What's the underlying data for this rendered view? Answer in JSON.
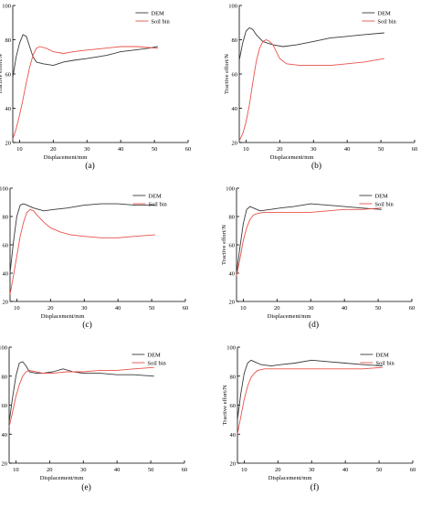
{
  "figure": {
    "colors": {
      "DEM": "#3a3a3a",
      "Soil bin": "#e8524a",
      "axis": "#000000"
    },
    "xlabel": "Displacement/mm",
    "ylabel": "Tractive effort/N",
    "xticks": [
      10,
      20,
      30,
      40,
      50,
      60
    ],
    "yticks": [
      20,
      40,
      60,
      80,
      100
    ],
    "legend": [
      "DEM",
      "Soil bin"
    ]
  },
  "chart_data": [
    {
      "label": "(a)",
      "type": "line",
      "xlim": [
        8,
        60
      ],
      "ylim": [
        20,
        100
      ],
      "xlabel": "Displacement/mm",
      "ylabel": "Tractive effort/N",
      "legend_position": "top-right",
      "series": [
        {
          "name": "DEM",
          "points": [
            [
              8,
              58
            ],
            [
              9,
              70
            ],
            [
              10,
              78
            ],
            [
              11,
              83
            ],
            [
              12,
              82
            ],
            [
              13,
              76
            ],
            [
              14,
              70
            ],
            [
              15,
              67
            ],
            [
              17,
              66
            ],
            [
              20,
              65
            ],
            [
              23,
              67
            ],
            [
              26,
              68
            ],
            [
              30,
              69
            ],
            [
              33,
              70
            ],
            [
              36,
              71
            ],
            [
              40,
              73
            ],
            [
              44,
              74
            ],
            [
              48,
              75
            ],
            [
              51,
              76
            ]
          ]
        },
        {
          "name": "Soil bin",
          "points": [
            [
              8,
              22
            ],
            [
              9,
              28
            ],
            [
              10,
              36
            ],
            [
              11,
              45
            ],
            [
              12,
              55
            ],
            [
              13,
              64
            ],
            [
              14,
              71
            ],
            [
              15,
              75
            ],
            [
              16,
              76
            ],
            [
              18,
              75
            ],
            [
              20,
              73
            ],
            [
              23,
              72
            ],
            [
              26,
              73
            ],
            [
              30,
              74
            ],
            [
              35,
              75
            ],
            [
              40,
              76
            ],
            [
              45,
              76
            ],
            [
              51,
              75
            ]
          ]
        }
      ]
    },
    {
      "label": "(b)",
      "type": "line",
      "xlim": [
        8,
        60
      ],
      "ylim": [
        20,
        100
      ],
      "xlabel": "Displacement/mm",
      "ylabel": "Tractive effort/N",
      "legend_position": "top-right",
      "series": [
        {
          "name": "DEM",
          "points": [
            [
              8,
              68
            ],
            [
              9,
              78
            ],
            [
              10,
              85
            ],
            [
              11,
              87
            ],
            [
              12,
              86
            ],
            [
              13,
              83
            ],
            [
              15,
              79
            ],
            [
              18,
              77
            ],
            [
              21,
              76
            ],
            [
              25,
              77
            ],
            [
              30,
              79
            ],
            [
              35,
              81
            ],
            [
              40,
              82
            ],
            [
              45,
              83
            ],
            [
              51,
              84
            ]
          ]
        },
        {
          "name": "Soil bin",
          "points": [
            [
              8,
              21
            ],
            [
              9,
              25
            ],
            [
              10,
              32
            ],
            [
              11,
              42
            ],
            [
              12,
              55
            ],
            [
              13,
              67
            ],
            [
              14,
              75
            ],
            [
              15,
              79
            ],
            [
              16,
              80
            ],
            [
              17,
              79
            ],
            [
              18,
              77
            ],
            [
              19,
              73
            ],
            [
              20,
              69
            ],
            [
              22,
              66
            ],
            [
              26,
              65
            ],
            [
              30,
              65
            ],
            [
              35,
              65
            ],
            [
              40,
              66
            ],
            [
              45,
              67
            ],
            [
              51,
              69
            ]
          ]
        }
      ]
    },
    {
      "label": "(c)",
      "type": "line",
      "xlim": [
        8,
        60
      ],
      "ylim": [
        20,
        100
      ],
      "xlabel": "Displacement/mm",
      "ylabel": "Tractive effort/N",
      "legend_position": "top-right",
      "series": [
        {
          "name": "DEM",
          "points": [
            [
              8,
              40
            ],
            [
              9,
              62
            ],
            [
              10,
              80
            ],
            [
              11,
              88
            ],
            [
              12,
              89
            ],
            [
              13,
              88
            ],
            [
              15,
              86
            ],
            [
              18,
              84
            ],
            [
              21,
              85
            ],
            [
              25,
              86
            ],
            [
              30,
              88
            ],
            [
              35,
              89
            ],
            [
              40,
              89
            ],
            [
              45,
              88
            ],
            [
              51,
              88
            ]
          ]
        },
        {
          "name": "Soil bin",
          "points": [
            [
              8,
              25
            ],
            [
              9,
              38
            ],
            [
              10,
              52
            ],
            [
              11,
              66
            ],
            [
              12,
              76
            ],
            [
              13,
              83
            ],
            [
              14,
              85
            ],
            [
              15,
              84
            ],
            [
              16,
              81
            ],
            [
              18,
              76
            ],
            [
              20,
              72
            ],
            [
              23,
              69
            ],
            [
              26,
              67
            ],
            [
              30,
              66
            ],
            [
              35,
              65
            ],
            [
              40,
              65
            ],
            [
              45,
              66
            ],
            [
              51,
              67
            ]
          ]
        }
      ]
    },
    {
      "label": "(d)",
      "type": "line",
      "xlim": [
        8,
        60
      ],
      "ylim": [
        20,
        100
      ],
      "xlabel": "Displacement/mm",
      "ylabel": "Tractive effort/N",
      "legend_position": "top-right",
      "series": [
        {
          "name": "DEM",
          "points": [
            [
              8,
              40
            ],
            [
              9,
              58
            ],
            [
              10,
              75
            ],
            [
              11,
              85
            ],
            [
              12,
              87
            ],
            [
              13,
              86
            ],
            [
              15,
              84
            ],
            [
              18,
              85
            ],
            [
              21,
              86
            ],
            [
              25,
              87
            ],
            [
              30,
              89
            ],
            [
              35,
              88
            ],
            [
              40,
              87
            ],
            [
              45,
              86
            ],
            [
              51,
              85
            ]
          ]
        },
        {
          "name": "Soil bin",
          "points": [
            [
              8,
              38
            ],
            [
              9,
              50
            ],
            [
              10,
              63
            ],
            [
              11,
              72
            ],
            [
              12,
              78
            ],
            [
              13,
              81
            ],
            [
              14,
              82
            ],
            [
              16,
              83
            ],
            [
              18,
              83
            ],
            [
              21,
              83
            ],
            [
              25,
              83
            ],
            [
              30,
              83
            ],
            [
              35,
              84
            ],
            [
              40,
              85
            ],
            [
              45,
              85
            ],
            [
              51,
              86
            ]
          ]
        }
      ]
    },
    {
      "label": "(e)",
      "type": "line",
      "xlim": [
        8,
        60
      ],
      "ylim": [
        20,
        100
      ],
      "xlabel": "Displacement/mm",
      "ylabel": "Tractive effort/N",
      "legend_position": "top-right",
      "series": [
        {
          "name": "DEM",
          "points": [
            [
              8,
              48
            ],
            [
              9,
              65
            ],
            [
              10,
              80
            ],
            [
              11,
              89
            ],
            [
              12,
              90
            ],
            [
              13,
              87
            ],
            [
              14,
              83
            ],
            [
              16,
              82
            ],
            [
              18,
              82
            ],
            [
              21,
              83
            ],
            [
              24,
              85
            ],
            [
              27,
              83
            ],
            [
              30,
              82
            ],
            [
              35,
              82
            ],
            [
              40,
              81
            ],
            [
              45,
              81
            ],
            [
              51,
              80
            ]
          ]
        },
        {
          "name": "Soil bin",
          "points": [
            [
              8,
              45
            ],
            [
              9,
              55
            ],
            [
              10,
              66
            ],
            [
              11,
              74
            ],
            [
              12,
              80
            ],
            [
              13,
              83
            ],
            [
              14,
              84
            ],
            [
              16,
              83
            ],
            [
              18,
              82
            ],
            [
              21,
              82
            ],
            [
              25,
              83
            ],
            [
              30,
              83
            ],
            [
              35,
              84
            ],
            [
              40,
              84
            ],
            [
              45,
              85
            ],
            [
              51,
              86
            ]
          ]
        }
      ]
    },
    {
      "label": "(f)",
      "type": "line",
      "xlim": [
        8,
        60
      ],
      "ylim": [
        20,
        100
      ],
      "xlabel": "Displacement/mm",
      "ylabel": "Tractive effort/N",
      "legend_position": "top-right",
      "series": [
        {
          "name": "DEM",
          "points": [
            [
              8,
              50
            ],
            [
              9,
              68
            ],
            [
              10,
              82
            ],
            [
              11,
              89
            ],
            [
              12,
              91
            ],
            [
              13,
              90
            ],
            [
              15,
              88
            ],
            [
              18,
              87
            ],
            [
              21,
              88
            ],
            [
              25,
              89
            ],
            [
              30,
              91
            ],
            [
              35,
              90
            ],
            [
              40,
              89
            ],
            [
              45,
              88
            ],
            [
              51,
              87
            ]
          ]
        },
        {
          "name": "Soil bin",
          "points": [
            [
              8,
              40
            ],
            [
              9,
              52
            ],
            [
              10,
              64
            ],
            [
              11,
              73
            ],
            [
              12,
              79
            ],
            [
              13,
              82
            ],
            [
              14,
              84
            ],
            [
              16,
              85
            ],
            [
              18,
              85
            ],
            [
              21,
              85
            ],
            [
              25,
              85
            ],
            [
              30,
              85
            ],
            [
              35,
              85
            ],
            [
              40,
              85
            ],
            [
              45,
              85
            ],
            [
              51,
              86
            ]
          ]
        }
      ]
    }
  ]
}
